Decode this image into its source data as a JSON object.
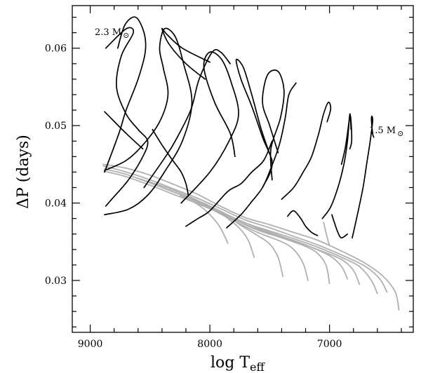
{
  "chart_data": {
    "type": "line",
    "xlabel": {
      "main": "log T",
      "sub": "eff"
    },
    "ylabel": "ΔP (days)",
    "xlim": [
      9150,
      6300
    ],
    "ylim": [
      0.0233,
      0.0655
    ],
    "x_ticks": [
      9000,
      8000,
      7000
    ],
    "x_tick_labels": [
      "9000",
      "8000",
      "7000"
    ],
    "y_ticks": [
      0.03,
      0.04,
      0.05,
      0.06
    ],
    "y_tick_labels": [
      "0.03",
      "0.04",
      "0.05",
      "0.06"
    ],
    "grid": false,
    "legend": "none",
    "annotations": [
      {
        "text": "2.3 M",
        "symbol": "⊙",
        "x": 9060,
        "y": 0.065
      },
      {
        "text": "1.5 M",
        "symbol": "⊙",
        "x": 6560,
        "y": 0.0511
      }
    ],
    "colors": {
      "black_series": "#000000",
      "gray_series": "#b0b0b0",
      "axes": "#000000"
    },
    "series": [
      {
        "color": "black",
        "x": [
          8870,
          8700,
          8640,
          8740,
          8780,
          8700,
          8600,
          8520,
          8560,
          8680,
          8820,
          8870
        ],
        "y": [
          0.06,
          0.0625,
          0.062,
          0.059,
          0.055,
          0.0515,
          0.0495,
          0.048,
          0.046,
          0.043,
          0.0405,
          0.0396
        ]
      },
      {
        "color": "black",
        "x": [
          8770,
          8710,
          8620,
          8550,
          8540,
          8600,
          8700,
          8760,
          8880
        ],
        "y": [
          0.06,
          0.063,
          0.064,
          0.062,
          0.0595,
          0.056,
          0.052,
          0.049,
          0.044
        ]
      },
      {
        "color": "black",
        "x": [
          8880,
          8700,
          8560
        ],
        "y": [
          0.0518,
          0.049,
          0.047
        ]
      },
      {
        "color": "black",
        "x": [
          8000,
          8230,
          8360,
          8400,
          8340,
          8200,
          8040
        ],
        "y": [
          0.0582,
          0.06,
          0.0618,
          0.0625,
          0.0605,
          0.058,
          0.056
        ]
      },
      {
        "color": "black",
        "x": [
          8880,
          8700,
          8560,
          8420,
          8350,
          8390,
          8420,
          8380,
          8290,
          8220,
          8150,
          8230,
          8380,
          8520,
          8680,
          8880
        ],
        "y": [
          0.0442,
          0.0455,
          0.0475,
          0.0505,
          0.054,
          0.0575,
          0.06,
          0.0625,
          0.0615,
          0.058,
          0.053,
          0.048,
          0.044,
          0.041,
          0.0392,
          0.0385
        ]
      },
      {
        "color": "black",
        "x": [
          8480,
          8400,
          8310,
          8240,
          8200,
          8180
        ],
        "y": [
          0.0495,
          0.0475,
          0.0455,
          0.044,
          0.0425,
          0.041
        ]
      },
      {
        "color": "black",
        "x": [
          8550,
          8370,
          8290,
          8160,
          8090,
          7980,
          7910,
          7830
        ],
        "y": [
          0.042,
          0.046,
          0.048,
          0.052,
          0.056,
          0.0595,
          0.0595,
          0.058
        ]
      },
      {
        "color": "black",
        "x": [
          7790,
          7830,
          7960,
          8050,
          8000,
          7900,
          7820,
          7760,
          7840,
          8000,
          8240
        ],
        "y": [
          0.046,
          0.049,
          0.053,
          0.0575,
          0.0595,
          0.0585,
          0.0555,
          0.0515,
          0.048,
          0.044,
          0.04
        ]
      },
      {
        "color": "black",
        "x": [
          7480,
          7570,
          7650,
          7720,
          7780,
          7740,
          7650,
          7560,
          7480,
          7560
        ],
        "y": [
          0.0455,
          0.0495,
          0.054,
          0.0575,
          0.0585,
          0.056,
          0.0525,
          0.0485,
          0.045,
          0.042
        ]
      },
      {
        "color": "black",
        "x": [
          8200,
          8100,
          8000,
          7850,
          7740,
          7650,
          7550,
          7480
        ],
        "y": [
          0.037,
          0.038,
          0.039,
          0.0415,
          0.0425,
          0.044,
          0.0455,
          0.048
        ]
      },
      {
        "color": "black",
        "x": [
          7430,
          7500,
          7560,
          7520,
          7430,
          7380,
          7410,
          7490,
          7480
        ],
        "y": [
          0.0465,
          0.05,
          0.053,
          0.0565,
          0.057,
          0.0545,
          0.051,
          0.047,
          0.043
        ]
      },
      {
        "color": "black",
        "x": [
          7860,
          7740,
          7660,
          7560,
          7490,
          7420,
          7370,
          7340,
          7280
        ],
        "y": [
          0.0368,
          0.0385,
          0.04,
          0.042,
          0.0445,
          0.0475,
          0.051,
          0.054,
          0.0555
        ]
      },
      {
        "color": "black",
        "x": [
          7400,
          7300,
          7220,
          7150,
          7090,
          7050,
          7010,
          6990,
          7020
        ],
        "y": [
          0.0405,
          0.042,
          0.044,
          0.046,
          0.049,
          0.0515,
          0.053,
          0.0522,
          0.0505
        ]
      },
      {
        "color": "black",
        "x": [
          7060,
          6990,
          6930,
          6880,
          6850,
          6830,
          6820
        ],
        "y": [
          0.038,
          0.0395,
          0.042,
          0.045,
          0.048,
          0.0515,
          0.0495
        ]
      },
      {
        "color": "black",
        "x": [
          6900,
          6870,
          6850,
          6830,
          6820,
          6815,
          6830
        ],
        "y": [
          0.045,
          0.047,
          0.049,
          0.0512,
          0.0505,
          0.048,
          0.047
        ]
      },
      {
        "color": "black",
        "x": [
          6810,
          6760,
          6720,
          6690,
          6660,
          6640,
          6645,
          6650,
          6640,
          6630
        ],
        "y": [
          0.0355,
          0.039,
          0.042,
          0.045,
          0.048,
          0.0505,
          0.0512,
          0.0508,
          0.049,
          0.0485
        ]
      },
      {
        "color": "black",
        "x": [
          7350,
          7300,
          7240,
          7200,
          7150,
          7100
        ],
        "y": [
          0.0383,
          0.039,
          0.038,
          0.037,
          0.0362,
          0.0358
        ]
      },
      {
        "color": "black",
        "x": [
          6980,
          6960,
          6930,
          6900,
          6850
        ],
        "y": [
          0.0385,
          0.0375,
          0.0362,
          0.0355,
          0.036
        ]
      },
      {
        "color": "gray",
        "x": [
          8890,
          8700,
          8500,
          8300,
          8100,
          7900,
          7700,
          7500,
          7300,
          7100,
          6900,
          6700,
          6550,
          6450,
          6420
        ],
        "y": [
          0.045,
          0.0445,
          0.0436,
          0.0424,
          0.0411,
          0.0395,
          0.0381,
          0.0372,
          0.0362,
          0.0352,
          0.0338,
          0.0322,
          0.0305,
          0.0285,
          0.0262
        ]
      },
      {
        "color": "gray",
        "x": [
          8890,
          8700,
          8500,
          8300,
          8100,
          7900,
          7700,
          7500,
          7300,
          7100,
          6900,
          6700,
          6580,
          6520
        ],
        "y": [
          0.0448,
          0.044,
          0.043,
          0.0418,
          0.0406,
          0.0392,
          0.0378,
          0.0368,
          0.0357,
          0.0346,
          0.0333,
          0.0318,
          0.0302,
          0.0285
        ]
      },
      {
        "color": "gray",
        "x": [
          8880,
          8700,
          8500,
          8300,
          8100,
          7900,
          7700,
          7500,
          7300,
          7100,
          6900,
          6750,
          6650,
          6600
        ],
        "y": [
          0.0444,
          0.0437,
          0.0426,
          0.0414,
          0.0402,
          0.0388,
          0.0374,
          0.0364,
          0.0354,
          0.0343,
          0.033,
          0.0318,
          0.03,
          0.0283
        ]
      },
      {
        "color": "gray",
        "x": [
          8880,
          8700,
          8500,
          8300,
          8100,
          7900,
          7700,
          7500,
          7300,
          7100,
          6900,
          6800,
          6750
        ],
        "y": [
          0.0441,
          0.0434,
          0.0423,
          0.0411,
          0.0399,
          0.0386,
          0.0372,
          0.0361,
          0.0351,
          0.034,
          0.0327,
          0.0313,
          0.0295
        ]
      },
      {
        "color": "gray",
        "x": [
          8600,
          8400,
          8200,
          8000,
          7800,
          7600,
          7400,
          7200,
          7000,
          6900,
          6850
        ],
        "y": [
          0.0432,
          0.0422,
          0.041,
          0.0396,
          0.0381,
          0.0368,
          0.0357,
          0.0346,
          0.0332,
          0.0318,
          0.0302
        ]
      },
      {
        "color": "gray",
        "x": [
          8400,
          8200,
          8000,
          7800,
          7600,
          7400,
          7200,
          7100,
          7030,
          7000
        ],
        "y": [
          0.042,
          0.0408,
          0.0394,
          0.0379,
          0.0365,
          0.0355,
          0.0344,
          0.0335,
          0.032,
          0.0296
        ]
      },
      {
        "color": "gray",
        "x": [
          8200,
          8000,
          7800,
          7600,
          7400,
          7300,
          7220,
          7180
        ],
        "y": [
          0.0408,
          0.0393,
          0.0377,
          0.0362,
          0.035,
          0.034,
          0.0322,
          0.03
        ]
      },
      {
        "color": "gray",
        "x": [
          8050,
          7900,
          7750,
          7600,
          7500,
          7430,
          7390
        ],
        "y": [
          0.04,
          0.0388,
          0.0372,
          0.0358,
          0.0347,
          0.033,
          0.0305
        ]
      },
      {
        "color": "gray",
        "x": [
          7950,
          7850,
          7750,
          7680,
          7630
        ],
        "y": [
          0.0392,
          0.038,
          0.0367,
          0.0352,
          0.033
        ]
      },
      {
        "color": "gray",
        "x": [
          8250,
          8100,
          8000,
          7920,
          7870,
          7850
        ],
        "y": [
          0.041,
          0.0398,
          0.0385,
          0.037,
          0.0355,
          0.0348
        ]
      },
      {
        "color": "gray",
        "x": [
          7050,
          7030,
          7010,
          7000
        ],
        "y": [
          0.0375,
          0.0362,
          0.035,
          0.0345
        ]
      }
    ]
  }
}
